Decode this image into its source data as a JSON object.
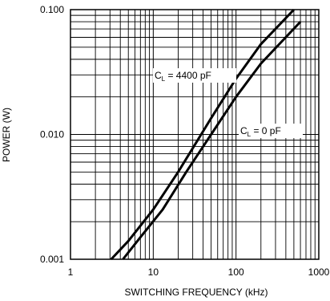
{
  "chart_data": {
    "type": "line",
    "title": "",
    "xlabel": "SWITCHING FREQUENCY (kHz)",
    "ylabel": "POWER (W)",
    "x_scale": "log",
    "y_scale": "log",
    "xlim": [
      1,
      1000
    ],
    "ylim": [
      0.001,
      0.1
    ],
    "x_ticks": [
      1,
      10,
      100,
      1000
    ],
    "x_tick_labels": [
      "1",
      "10",
      "100",
      "1000"
    ],
    "y_ticks": [
      0.001,
      0.01,
      0.1
    ],
    "y_tick_labels": [
      "0.001",
      "0.010",
      "0.100"
    ],
    "grid": true,
    "series": [
      {
        "label_main": "C",
        "label_sub": "L",
        "label_rest": " = 4400 pF",
        "x": [
          3.1,
          5,
          10,
          20,
          50,
          100,
          200,
          500
        ],
        "y": [
          0.001,
          0.0014,
          0.0025,
          0.005,
          0.0135,
          0.028,
          0.053,
          0.1
        ]
      },
      {
        "label_main": "C",
        "label_sub": "L",
        "label_rest": " = 0 pF",
        "x": [
          4.3,
          7,
          13,
          25,
          50,
          100,
          200,
          600
        ],
        "y": [
          0.001,
          0.0015,
          0.0025,
          0.005,
          0.01,
          0.02,
          0.037,
          0.08
        ]
      }
    ],
    "line_color": "#000000",
    "grid_color": "#000000"
  }
}
